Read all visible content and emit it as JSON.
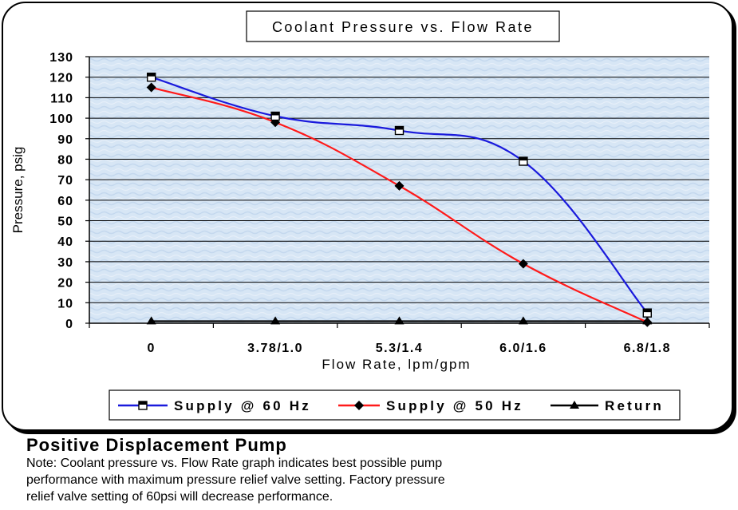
{
  "chart_data": {
    "type": "line",
    "title": "Coolant Pressure vs. Flow Rate",
    "xlabel": "Flow Rate, lpm/gpm",
    "ylabel": "Pressure, psig",
    "categories": [
      "0",
      "3.78/1.0",
      "5.3/1.4",
      "6.0/1.6",
      "6.8/1.8"
    ],
    "ylim": [
      0,
      130
    ],
    "ytick_step": 10,
    "yticks": [
      "0",
      "10",
      "20",
      "30",
      "40",
      "50",
      "60",
      "70",
      "80",
      "90",
      "100",
      "110",
      "120",
      "130"
    ],
    "grid": true,
    "legend_position": "bottom",
    "series": [
      {
        "name": "Supply @ 60 Hz",
        "values": [
          120,
          101,
          94,
          79,
          5
        ],
        "color": "#1a1adc",
        "marker": "square"
      },
      {
        "name": "Supply @ 50 Hz",
        "values": [
          115,
          98,
          67,
          29,
          0.5
        ],
        "color": "#ff1a1a",
        "marker": "diamond"
      },
      {
        "name": "Return",
        "values": [
          1,
          1,
          1,
          1,
          1
        ],
        "color": "#000000",
        "marker": "triangle"
      }
    ]
  },
  "caption": {
    "title": "Positive Displacement Pump",
    "note_lines": [
      "Note: Coolant pressure vs. Flow Rate graph indicates best possible pump",
      "performance with maximum pressure relief valve setting.  Factory pressure",
      "relief valve setting of 60psi will decrease performance."
    ]
  },
  "colors": {
    "plot_bg": "#d7e6f5",
    "plot_bg_texture": "#c3d8ee"
  }
}
